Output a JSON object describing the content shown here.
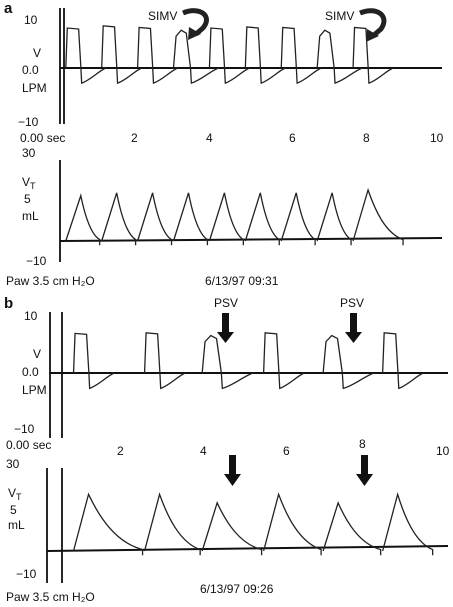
{
  "chart_data": [
    {
      "panel": "a",
      "type": "line",
      "x_ticks": [
        "0.00 sec",
        "2",
        "4",
        "6",
        "8",
        "10"
      ],
      "xlim": [
        0,
        10
      ],
      "timestamp": "6/13/97  09:31",
      "pressure": "Paw 3.5 cm H₂O",
      "flow": {
        "label_top": "V",
        "label_bottom": "LPM",
        "ticks": [
          "10",
          "0.0",
          "−10"
        ],
        "ylim": [
          -10,
          10
        ],
        "breaths": [
          {
            "t": 0.1,
            "peak": 7.4,
            "kind": "spont",
            "area": [
              {
                "start": 0.1,
                "end": 0.5
              }
            ]
          },
          {
            "t": 1.05,
            "peak": 7.8,
            "kind": "spont",
            "area": [
              {
                "start": 1.05,
                "end": 1.45
              }
            ]
          },
          {
            "t": 2.0,
            "peak": 7.5,
            "kind": "spont",
            "area": [
              {
                "start": 2.0,
                "end": 2.4
              }
            ]
          },
          {
            "t": 2.95,
            "peak": 7.0,
            "kind": "mand",
            "area": [
              {
                "start": 2.95,
                "end": 3.4
              }
            ]
          },
          {
            "t": 3.9,
            "peak": 7.4,
            "kind": "spont",
            "area": [
              {
                "start": 3.9,
                "end": 4.3
              }
            ]
          },
          {
            "t": 4.85,
            "peak": 7.6,
            "kind": "spont",
            "area": [
              {
                "start": 4.85,
                "end": 5.25
              }
            ]
          },
          {
            "t": 5.8,
            "peak": 7.5,
            "kind": "spont",
            "area": [
              {
                "start": 5.8,
                "end": 6.2
              }
            ]
          },
          {
            "t": 6.75,
            "peak": 7.0,
            "kind": "mand",
            "area": [
              {
                "start": 6.75,
                "end": 7.2
              }
            ]
          },
          {
            "t": 7.7,
            "peak": 7.5,
            "kind": "spont",
            "area": [
              {
                "start": 7.7,
                "end": 8.1
              }
            ]
          }
        ]
      },
      "volume": {
        "label_top": "V",
        "label_sub": "T",
        "label_mid": "5",
        "label_bottom": "mL",
        "ticks": [
          "30",
          "−10"
        ],
        "ylim": [
          -10,
          30
        ],
        "breath_starts": [
          0.1,
          1.05,
          2.0,
          2.95,
          3.9,
          4.85,
          5.8,
          6.75,
          7.7
        ],
        "peaks": [
          16,
          17,
          17,
          17,
          17,
          17,
          17,
          17,
          18
        ]
      },
      "annotations": [
        {
          "text": "SIMV",
          "at_time": 3.0
        },
        {
          "text": "SIMV",
          "at_time": 6.8
        }
      ]
    },
    {
      "panel": "b",
      "type": "line",
      "x_ticks": [
        "0.00 sec",
        "2",
        "4",
        "6",
        "8",
        "10"
      ],
      "xlim": [
        0,
        10
      ],
      "timestamp": "6/13/97  09:26",
      "pressure": "Paw 3.5 cm H₂O",
      "flow": {
        "label_top": "V",
        "label_bottom": "LPM",
        "ticks": [
          "10",
          "0.0",
          "−10"
        ],
        "ylim": [
          -10,
          10
        ],
        "breaths": [
          {
            "t": 0.3,
            "peak": 7.2,
            "kind": "spont",
            "area": [
              {
                "start": 0.3,
                "end": 0.7
              }
            ]
          },
          {
            "t": 2.15,
            "peak": 7.3,
            "kind": "spont",
            "area": [
              {
                "start": 2.15,
                "end": 2.55
              }
            ]
          },
          {
            "t": 3.65,
            "peak": 6.8,
            "kind": "mand",
            "area": [
              {
                "start": 3.65,
                "end": 4.15
              }
            ]
          },
          {
            "t": 5.25,
            "peak": 7.3,
            "kind": "spont",
            "area": [
              {
                "start": 5.25,
                "end": 5.65
              }
            ]
          },
          {
            "t": 6.8,
            "peak": 6.8,
            "kind": "mand",
            "area": [
              {
                "start": 6.8,
                "end": 7.3
              }
            ]
          },
          {
            "t": 8.35,
            "peak": 7.3,
            "kind": "spont",
            "area": [
              {
                "start": 8.35,
                "end": 8.75
              }
            ]
          }
        ]
      },
      "volume": {
        "label_top": "V",
        "label_sub": "T",
        "label_mid": "5",
        "label_bottom": "mL",
        "ticks": [
          "30",
          "−10"
        ],
        "ylim": [
          -10,
          30
        ],
        "breath_starts": [
          0.3,
          2.15,
          3.65,
          5.25,
          6.8,
          8.35
        ],
        "peaks": [
          20,
          20,
          17,
          20,
          17,
          20
        ]
      },
      "annotations": [
        {
          "text": "PSV",
          "at_time": 3.9
        },
        {
          "text": "PSV",
          "at_time": 7.05
        }
      ]
    }
  ]
}
